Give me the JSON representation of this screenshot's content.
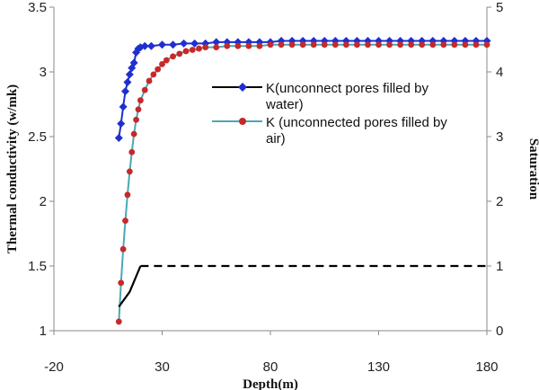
{
  "chart_data": {
    "type": "line",
    "xlabel": "Depth(m)",
    "ylabel": "Thermal conductivity (w/mk)",
    "y2label": "Saturation",
    "xlim": [
      -20,
      180
    ],
    "ylim": [
      1,
      3.5
    ],
    "y2lim": [
      0,
      5
    ],
    "xticks": [
      "-20",
      "30",
      "80",
      "130",
      "180"
    ],
    "yticks": [
      "1",
      "1.5",
      "2",
      "2.5",
      "3",
      "3.5"
    ],
    "y2ticks": [
      "0",
      "1",
      "2",
      "3",
      "4",
      "5"
    ],
    "grid": false,
    "legend_position": "center-right",
    "series": [
      {
        "name": "K(unconnect pores filled by water)",
        "axis": "left",
        "color": "#1f2fd0",
        "marker": "diamond",
        "x": [
          10,
          11,
          12,
          13,
          14,
          15,
          16,
          17,
          18,
          19,
          20,
          22,
          25,
          30,
          35,
          40,
          45,
          50,
          55,
          60,
          65,
          70,
          75,
          80,
          85,
          90,
          95,
          100,
          105,
          110,
          115,
          120,
          125,
          130,
          135,
          140,
          145,
          150,
          155,
          160,
          165,
          170,
          175,
          180
        ],
        "y": [
          2.49,
          2.6,
          2.73,
          2.85,
          2.92,
          2.98,
          3.03,
          3.07,
          3.15,
          3.18,
          3.19,
          3.2,
          3.2,
          3.21,
          3.21,
          3.22,
          3.22,
          3.22,
          3.23,
          3.23,
          3.23,
          3.23,
          3.23,
          3.23,
          3.24,
          3.24,
          3.24,
          3.24,
          3.24,
          3.24,
          3.24,
          3.24,
          3.24,
          3.24,
          3.24,
          3.24,
          3.24,
          3.24,
          3.24,
          3.24,
          3.24,
          3.24,
          3.24,
          3.24
        ]
      },
      {
        "name": "K (unconnected pores filled by air)",
        "axis": "left",
        "color": "#4aa8b4",
        "marker": "circle",
        "marker_color": "#c82828",
        "x": [
          10,
          11,
          12,
          13,
          14,
          15,
          16,
          17,
          18,
          19,
          20,
          22,
          24,
          26,
          28,
          30,
          32,
          35,
          38,
          41,
          44,
          47,
          50,
          55,
          60,
          65,
          70,
          75,
          80,
          85,
          90,
          95,
          100,
          105,
          110,
          115,
          120,
          125,
          130,
          135,
          140,
          145,
          150,
          155,
          160,
          165,
          170,
          175,
          180
        ],
        "y": [
          1.07,
          1.37,
          1.63,
          1.85,
          2.05,
          2.23,
          2.38,
          2.52,
          2.63,
          2.71,
          2.78,
          2.86,
          2.93,
          2.98,
          3.02,
          3.06,
          3.09,
          3.12,
          3.14,
          3.16,
          3.17,
          3.18,
          3.19,
          3.19,
          3.2,
          3.2,
          3.2,
          3.2,
          3.21,
          3.21,
          3.21,
          3.21,
          3.21,
          3.21,
          3.21,
          3.21,
          3.21,
          3.21,
          3.21,
          3.21,
          3.21,
          3.21,
          3.21,
          3.21,
          3.21,
          3.21,
          3.21,
          3.21,
          3.21
        ]
      },
      {
        "name": "",
        "axis": "right",
        "color": "#000000",
        "style": "solid-then-dashed",
        "x_dash_start": 20,
        "x": [
          10,
          15,
          20,
          180
        ],
        "y": [
          0.37,
          0.6,
          1.0,
          1.0
        ]
      }
    ]
  }
}
